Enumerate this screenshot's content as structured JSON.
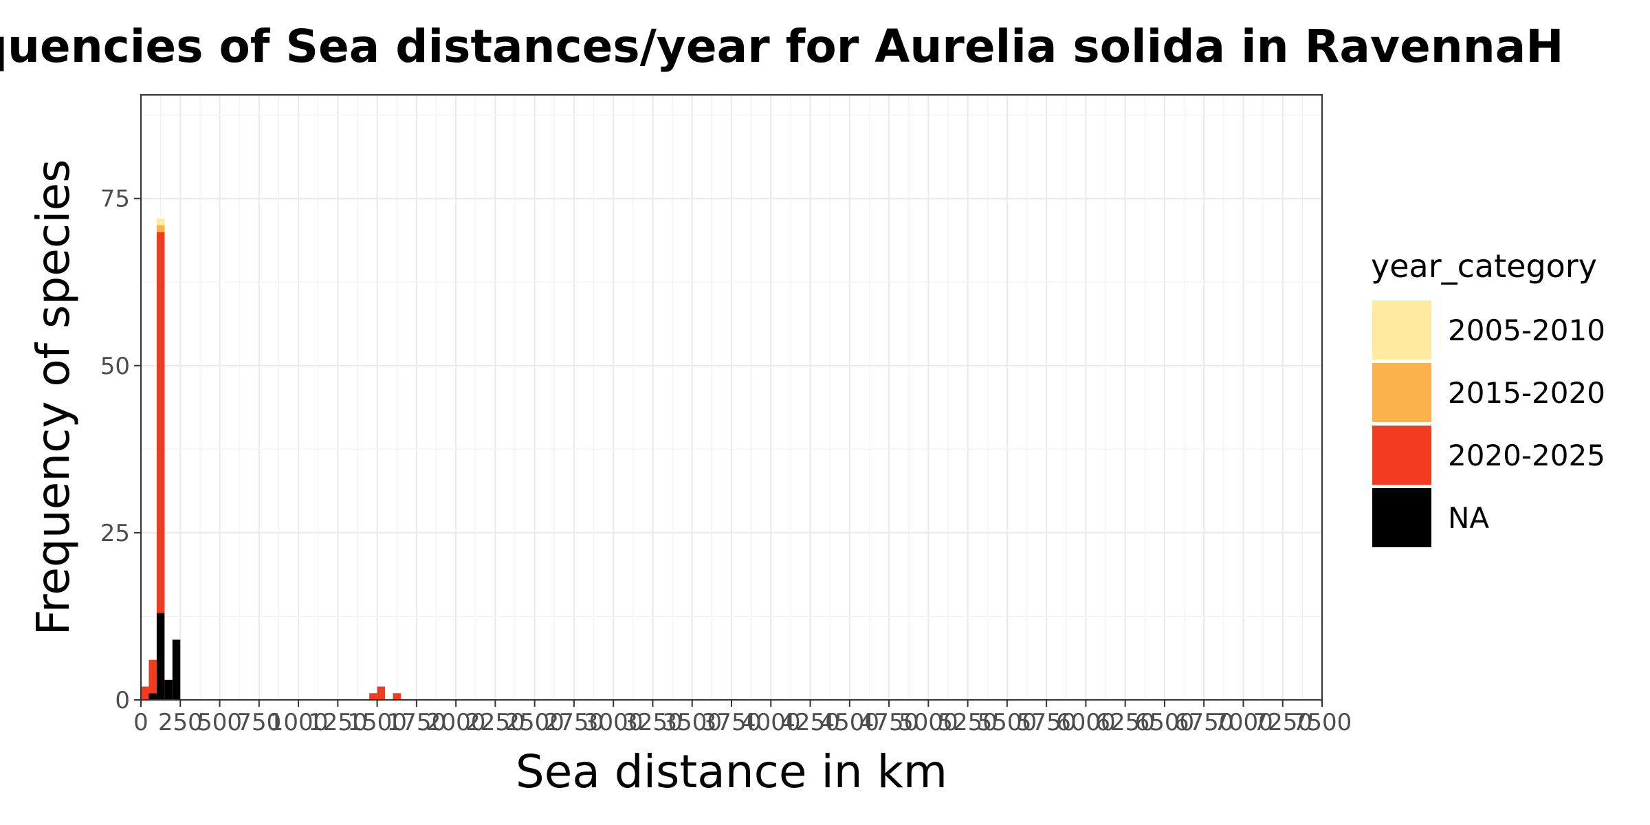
{
  "chart_data": {
    "type": "bar",
    "title": "Frequencies of Sea distances/year for Aurelia solida in RavennaH",
    "xlabel": "Sea distance in km",
    "ylabel": "Frequency of species",
    "xlim": [
      0,
      7500
    ],
    "ylim": [
      0,
      90.5
    ],
    "bin_width": 50,
    "x_ticks": [
      0,
      250,
      500,
      750,
      1000,
      1250,
      1500,
      1750,
      2000,
      2250,
      2500,
      2750,
      3000,
      3250,
      3500,
      3750,
      4000,
      4250,
      4500,
      4750,
      5000,
      5250,
      5500,
      5750,
      6000,
      6250,
      6500,
      6750,
      7000,
      7250,
      7500
    ],
    "y_ticks": [
      0,
      25,
      50,
      75
    ],
    "grid": true,
    "legend": {
      "title": "year_category",
      "position": "right",
      "entries": [
        {
          "label": "2005-2010",
          "color": "#FEEB9F"
        },
        {
          "label": "2015-2020",
          "color": "#FCB24C"
        },
        {
          "label": "2020-2025",
          "color": "#F03B20"
        },
        {
          "label": "NA",
          "color": "#000000"
        }
      ]
    },
    "series_order_bottom_to_top": [
      "NA",
      "2020-2025",
      "2015-2020",
      "2005-2010"
    ],
    "bins": [
      {
        "x0": 0,
        "x1": 50,
        "counts": {
          "NA": 0,
          "2020-2025": 2,
          "2015-2020": 0,
          "2005-2010": 0
        }
      },
      {
        "x0": 50,
        "x1": 100,
        "counts": {
          "NA": 1,
          "2020-2025": 5,
          "2015-2020": 0,
          "2005-2010": 0
        }
      },
      {
        "x0": 100,
        "x1": 150,
        "counts": {
          "NA": 13,
          "2020-2025": 57,
          "2015-2020": 1,
          "2005-2010": 1
        }
      },
      {
        "x0": 150,
        "x1": 200,
        "counts": {
          "NA": 3,
          "2020-2025": 0,
          "2015-2020": 0,
          "2005-2010": 0
        }
      },
      {
        "x0": 200,
        "x1": 250,
        "counts": {
          "NA": 9,
          "2020-2025": 0,
          "2015-2020": 0,
          "2005-2010": 0
        }
      },
      {
        "x0": 1450,
        "x1": 1500,
        "counts": {
          "NA": 0,
          "2020-2025": 1,
          "2015-2020": 0,
          "2005-2010": 0
        }
      },
      {
        "x0": 1500,
        "x1": 1550,
        "counts": {
          "NA": 0,
          "2020-2025": 2,
          "2015-2020": 0,
          "2005-2010": 0
        }
      },
      {
        "x0": 1600,
        "x1": 1650,
        "counts": {
          "NA": 0,
          "2020-2025": 1,
          "2015-2020": 0,
          "2005-2010": 0
        }
      }
    ]
  }
}
